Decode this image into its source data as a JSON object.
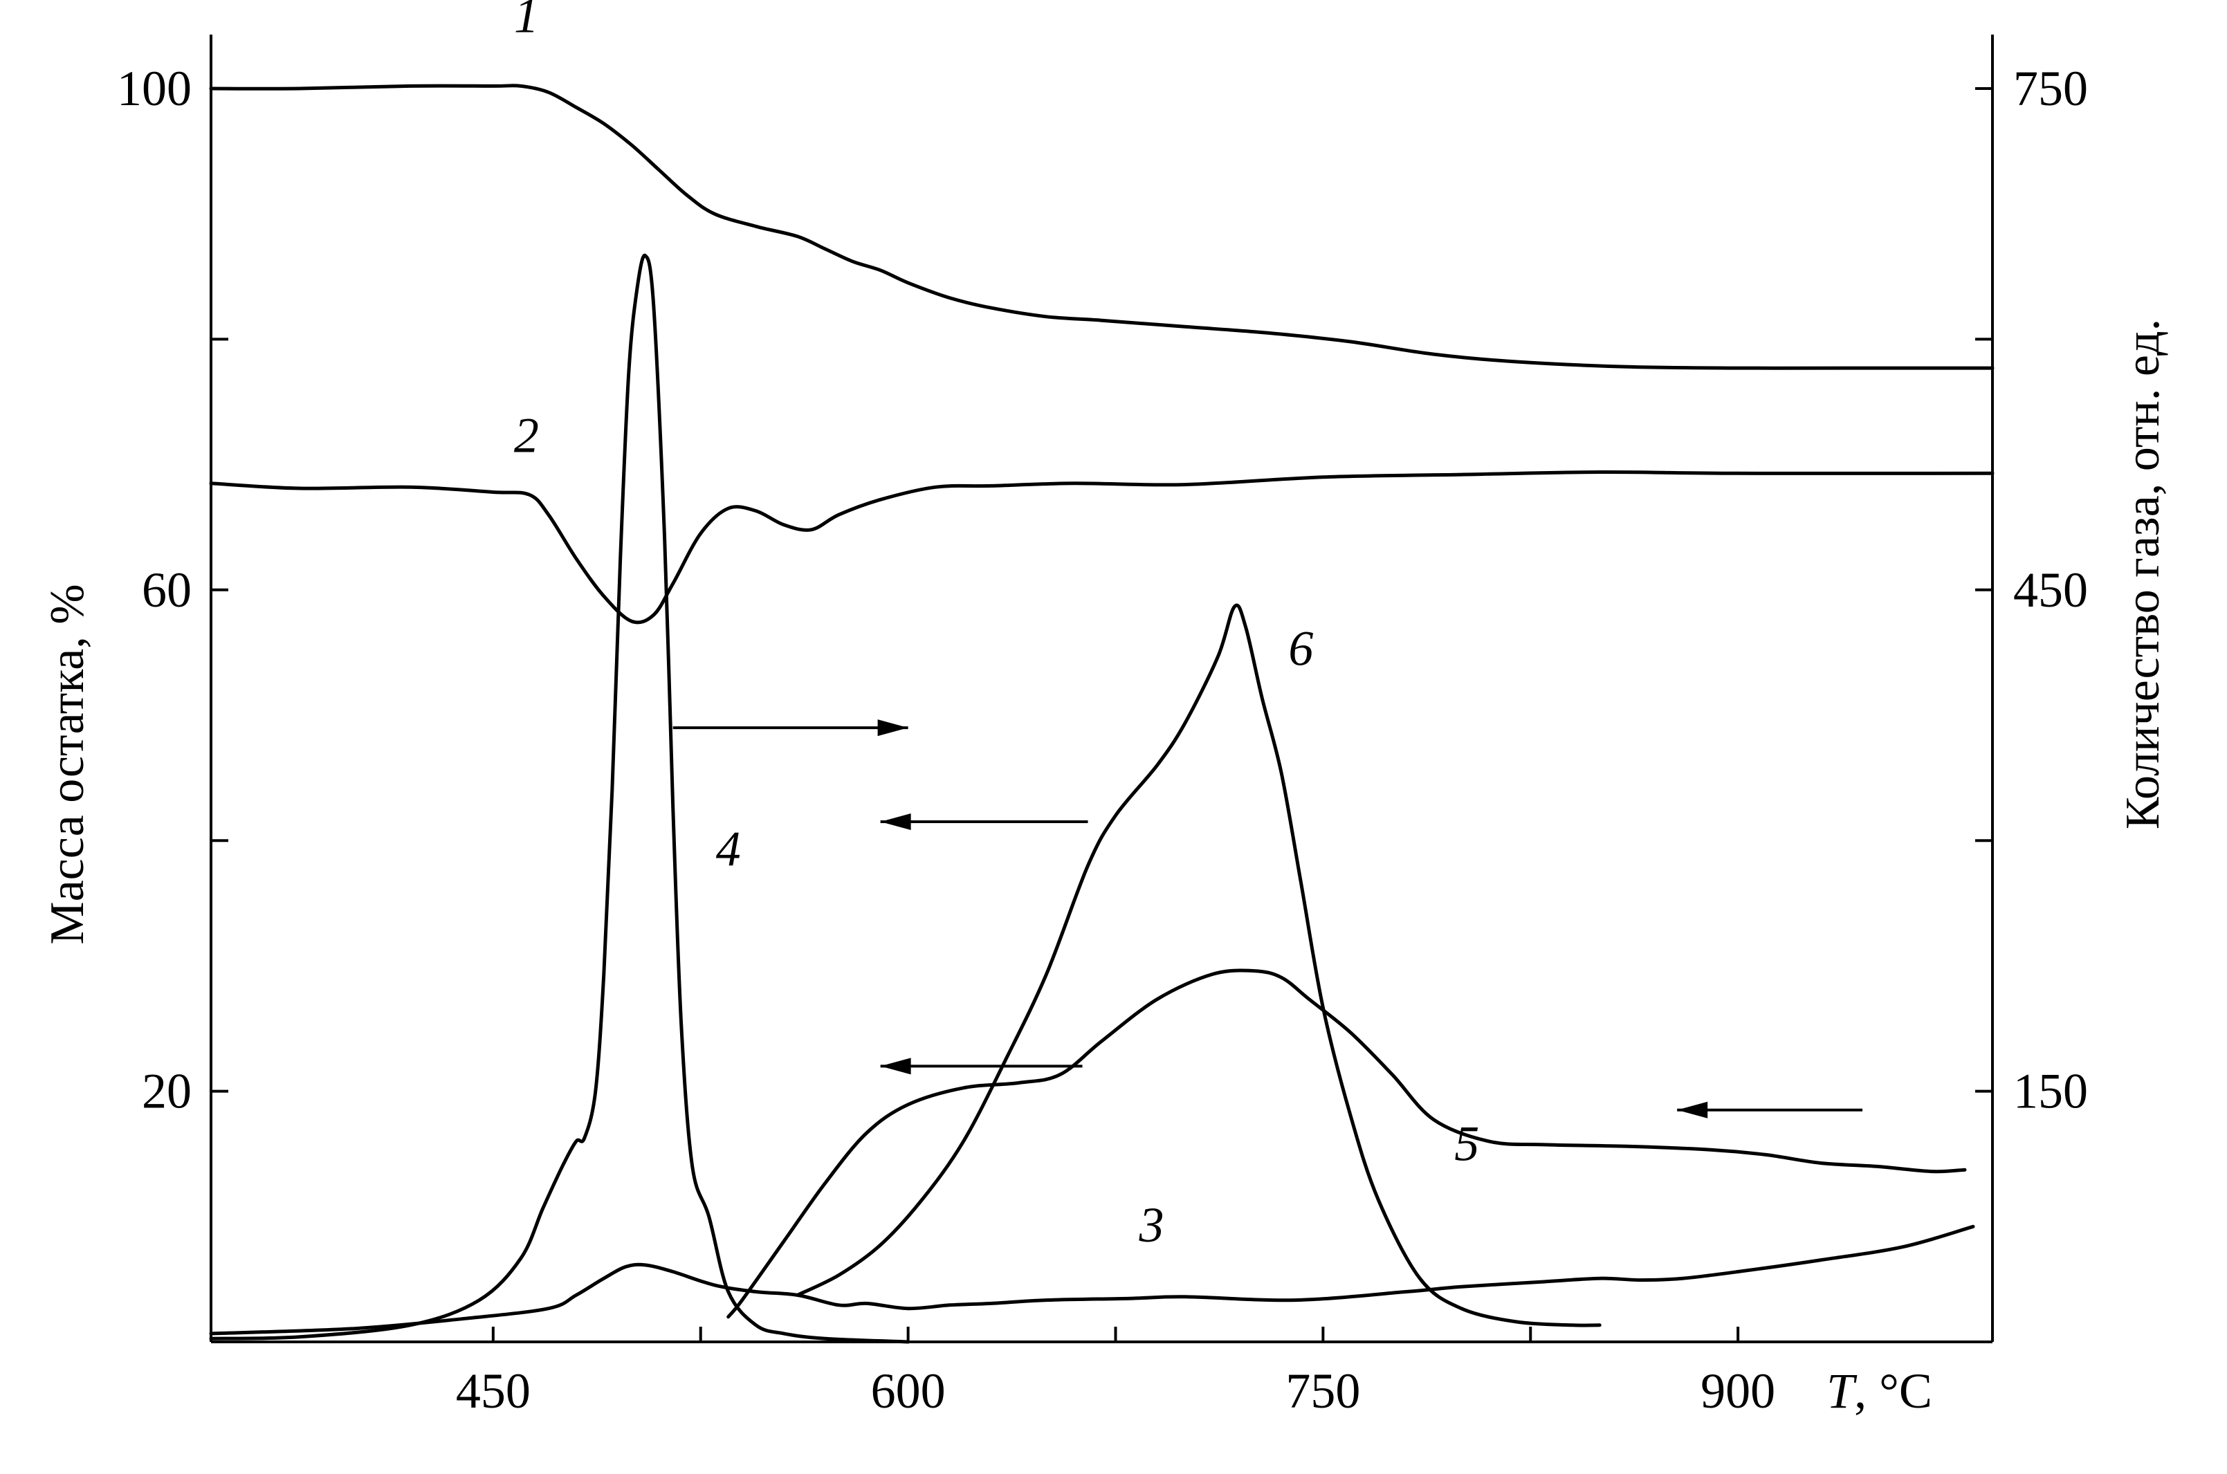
{
  "chart_data": {
    "type": "line",
    "xlabel": "T, °C",
    "ylabel_left": "Масса остатка, %",
    "ylabel_right": "Количество газа, отн. ед.",
    "x_ticks": [
      450,
      600,
      750,
      900
    ],
    "xlim": [
      348,
      992
    ],
    "y_left_ticks": [
      20,
      60,
      100
    ],
    "ylim_left": [
      0,
      100
    ],
    "y_right_ticks": [
      150,
      450,
      750
    ],
    "ylim_right": [
      0,
      750
    ],
    "grid": false,
    "series": [
      {
        "name": "1",
        "axis": "left",
        "x": [
          348,
          380,
          420,
          450,
          460,
          470,
          480,
          490,
          500,
          510,
          520,
          530,
          545,
          560,
          570,
          580,
          590,
          600,
          615,
          630,
          650,
          670,
          700,
          730,
          760,
          790,
          820,
          860,
          900,
          940,
          992
        ],
        "y": [
          100,
          100,
          100.2,
          100.2,
          100.2,
          99.7,
          98.5,
          97.2,
          95.5,
          93.5,
          91.5,
          90,
          89,
          88.2,
          87.2,
          86.2,
          85.5,
          84.5,
          83.3,
          82.5,
          81.8,
          81.5,
          81,
          80.5,
          79.8,
          78.8,
          78.2,
          77.8,
          77.7,
          77.7,
          77.7
        ]
      },
      {
        "name": "2",
        "axis": "left",
        "x": [
          348,
          380,
          420,
          450,
          463,
          470,
          480,
          490,
          500,
          508,
          515,
          525,
          535,
          545,
          555,
          565,
          575,
          590,
          610,
          630,
          660,
          700,
          750,
          800,
          850,
          900,
          992
        ],
        "y": [
          68.5,
          68.1,
          68.2,
          67.8,
          67.6,
          66,
          62.5,
          59.5,
          57.5,
          58,
          60.5,
          64.5,
          66.5,
          66.3,
          65.2,
          64.8,
          66,
          67.2,
          68.2,
          68.3,
          68.5,
          68.4,
          69,
          69.2,
          69.4,
          69.3,
          69.3
        ]
      },
      {
        "name": "3",
        "axis": "right",
        "x": [
          348,
          400,
          440,
          470,
          480,
          490,
          498,
          505,
          515,
          530,
          545,
          560,
          575,
          585,
          600,
          615,
          630,
          650,
          680,
          700,
          740,
          780,
          800,
          830,
          850,
          865,
          880,
          900,
          930,
          960,
          985
        ],
        "y": [
          5,
          8,
          14,
          20,
          28,
          38,
          45,
          46,
          42,
          34,
          30,
          28,
          22,
          23,
          20,
          22,
          23,
          25,
          26,
          27,
          25,
          30,
          33,
          36,
          38,
          37,
          38,
          42,
          49,
          57,
          69
        ]
      },
      {
        "name": "4",
        "axis": "right",
        "x": [
          348,
          380,
          420,
          445,
          460,
          468,
          475,
          480,
          483,
          487,
          490,
          493,
          496,
          499,
          502,
          505,
          508,
          512,
          515,
          518,
          522,
          528,
          535,
          545,
          555,
          570,
          600
        ],
        "y": [
          2,
          3,
          10,
          25,
          50,
          80,
          105,
          120,
          122,
          150,
          220,
          330,
          470,
          580,
          630,
          650,
          620,
          480,
          320,
          190,
          105,
          75,
          30,
          10,
          5,
          2,
          0
        ]
      },
      {
        "name": "5",
        "axis": "right",
        "x": [
          535,
          540,
          555,
          570,
          585,
          600,
          620,
          640,
          655,
          670,
          690,
          710,
          725,
          735,
          745,
          760,
          775,
          790,
          810,
          830,
          860,
          890,
          910,
          930,
          950,
          970,
          982
        ],
        "y": [
          15,
          25,
          60,
          95,
          125,
          142,
          152,
          155,
          160,
          180,
          205,
          220,
          222,
          218,
          205,
          185,
          160,
          133,
          120,
          118,
          117,
          115,
          112,
          107,
          105,
          102,
          103
        ]
      },
      {
        "name": "6",
        "axis": "right",
        "x": [
          560,
          575,
          590,
          605,
          620,
          635,
          650,
          665,
          675,
          690,
          700,
          712,
          718,
          722,
          728,
          735,
          742,
          750,
          760,
          770,
          785,
          800,
          820,
          840,
          850
        ],
        "y": [
          28,
          40,
          58,
          85,
          120,
          168,
          220,
          285,
          315,
          345,
          370,
          410,
          440,
          428,
          385,
          340,
          275,
          200,
          135,
          85,
          38,
          20,
          12,
          10,
          10
        ]
      }
    ],
    "curve_labels": [
      {
        "text": "1",
        "x": 462,
        "y_left": 104.5
      },
      {
        "text": "2",
        "x": 462,
        "y_left": 71
      },
      {
        "text": "3",
        "x": 688,
        "y_left": 8
      },
      {
        "text": "4",
        "x": 535,
        "y_left": 38
      },
      {
        "text": "5",
        "x": 802,
        "y_left": 14.5
      },
      {
        "text": "6",
        "x": 742,
        "y_left": 54
      }
    ],
    "arrows": [
      {
        "direction": "right",
        "axis_target": "right",
        "x_start": 515,
        "x_end": 600,
        "y_left": 49
      },
      {
        "direction": "left",
        "axis_target": "left",
        "x_start": 665,
        "x_end": 590,
        "y_left": 41.5
      },
      {
        "direction": "left",
        "axis_target": "left",
        "x_start": 663,
        "x_end": 590,
        "y_left": 22
      },
      {
        "direction": "left",
        "axis_target": "left",
        "x_start": 945,
        "x_end": 878,
        "y_left": 18.5
      }
    ]
  }
}
